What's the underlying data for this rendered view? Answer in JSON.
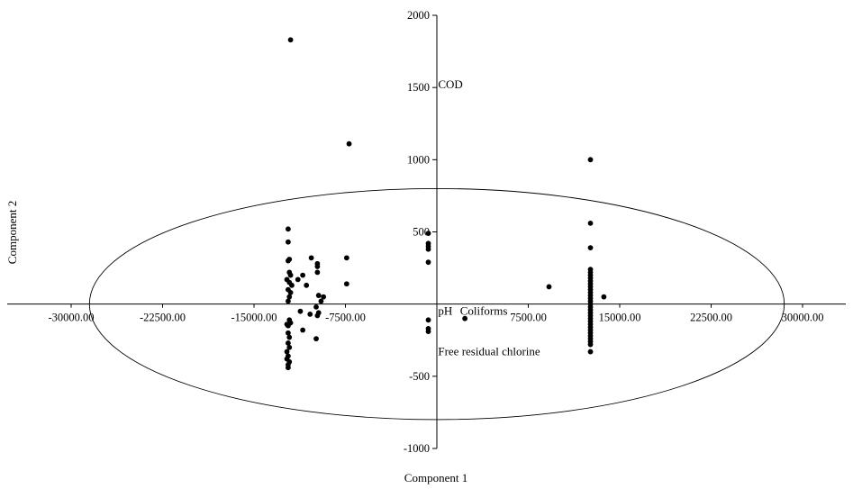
{
  "chart_data": {
    "type": "scatter",
    "xlabel": "Component 1",
    "ylabel": "Component 2",
    "xlim": [
      -30000,
      30000
    ],
    "ylim": [
      -1000,
      2000
    ],
    "x_ticks": [
      -30000,
      -22500,
      -15000,
      -7500,
      7500,
      15000,
      22500,
      30000
    ],
    "x_tick_labels": [
      "-30000.00",
      "-22500.00",
      "-15000.00",
      "-7500.00",
      "7500.00",
      "15000.00",
      "22500.00",
      "30000.00"
    ],
    "y_ticks": [
      -1000,
      -500,
      500,
      1000,
      1500,
      2000
    ],
    "y_tick_labels": [
      "-1000",
      "-500",
      "500",
      "1000",
      "1500",
      "2000"
    ],
    "grid": false,
    "ellipse": {
      "center": [
        0,
        0
      ],
      "rx": 28500,
      "ry": 800
    },
    "loadings": [
      {
        "label": "COD",
        "x": 100,
        "y": 1520
      },
      {
        "label": "pH",
        "x": 100,
        "y": -50
      },
      {
        "label": "Coliforms",
        "x": 1900,
        "y": -50
      },
      {
        "label": "Free residual chlorine",
        "x": 100,
        "y": -330
      }
    ],
    "points": [
      [
        -12000,
        1830
      ],
      [
        -7200,
        1110
      ],
      [
        -12200,
        520
      ],
      [
        -12200,
        430
      ],
      [
        -12100,
        310
      ],
      [
        -12200,
        300
      ],
      [
        -12100,
        220
      ],
      [
        -12000,
        200
      ],
      [
        -12300,
        170
      ],
      [
        -12100,
        150
      ],
      [
        -11900,
        130
      ],
      [
        -12200,
        100
      ],
      [
        -12000,
        80
      ],
      [
        -12100,
        50
      ],
      [
        -12200,
        20
      ],
      [
        -11400,
        170
      ],
      [
        -11000,
        200
      ],
      [
        -10300,
        320
      ],
      [
        -9800,
        280
      ],
      [
        -9800,
        260
      ],
      [
        -10700,
        130
      ],
      [
        -9800,
        220
      ],
      [
        -9700,
        60
      ],
      [
        -9300,
        50
      ],
      [
        -9500,
        20
      ],
      [
        -9900,
        -20
      ],
      [
        -9700,
        -60
      ],
      [
        -10400,
        -70
      ],
      [
        -9800,
        -80
      ],
      [
        -11200,
        -50
      ],
      [
        -12100,
        -110
      ],
      [
        -12000,
        -130
      ],
      [
        -12300,
        -140
      ],
      [
        -12200,
        -150
      ],
      [
        -12200,
        -200
      ],
      [
        -12100,
        -230
      ],
      [
        -11000,
        -180
      ],
      [
        -9900,
        -240
      ],
      [
        -12200,
        -270
      ],
      [
        -12100,
        -300
      ],
      [
        -12300,
        -330
      ],
      [
        -12200,
        -360
      ],
      [
        -12300,
        -380
      ],
      [
        -12100,
        -400
      ],
      [
        -12200,
        -420
      ],
      [
        -12200,
        -440
      ],
      [
        -7400,
        320
      ],
      [
        -7400,
        140
      ],
      [
        -700,
        490
      ],
      [
        -700,
        420
      ],
      [
        -700,
        400
      ],
      [
        -700,
        380
      ],
      [
        -700,
        290
      ],
      [
        -700,
        -110
      ],
      [
        -700,
        -170
      ],
      [
        -700,
        -190
      ],
      [
        2300,
        -100
      ],
      [
        9200,
        120
      ],
      [
        12600,
        1000
      ],
      [
        12600,
        560
      ],
      [
        12600,
        390
      ],
      [
        12600,
        240
      ],
      [
        12600,
        220
      ],
      [
        12600,
        200
      ],
      [
        12600,
        180
      ],
      [
        12600,
        160
      ],
      [
        12600,
        140
      ],
      [
        12600,
        120
      ],
      [
        12600,
        100
      ],
      [
        12600,
        80
      ],
      [
        12600,
        60
      ],
      [
        12600,
        40
      ],
      [
        12600,
        20
      ],
      [
        12600,
        0
      ],
      [
        12600,
        -20
      ],
      [
        12600,
        -40
      ],
      [
        12600,
        -60
      ],
      [
        12600,
        -80
      ],
      [
        12600,
        -100
      ],
      [
        12600,
        -120
      ],
      [
        12600,
        -140
      ],
      [
        12600,
        -160
      ],
      [
        12600,
        -180
      ],
      [
        12600,
        -200
      ],
      [
        12600,
        -220
      ],
      [
        12600,
        -240
      ],
      [
        12600,
        -260
      ],
      [
        12600,
        -280
      ],
      [
        12600,
        -330
      ],
      [
        13700,
        50
      ]
    ]
  }
}
